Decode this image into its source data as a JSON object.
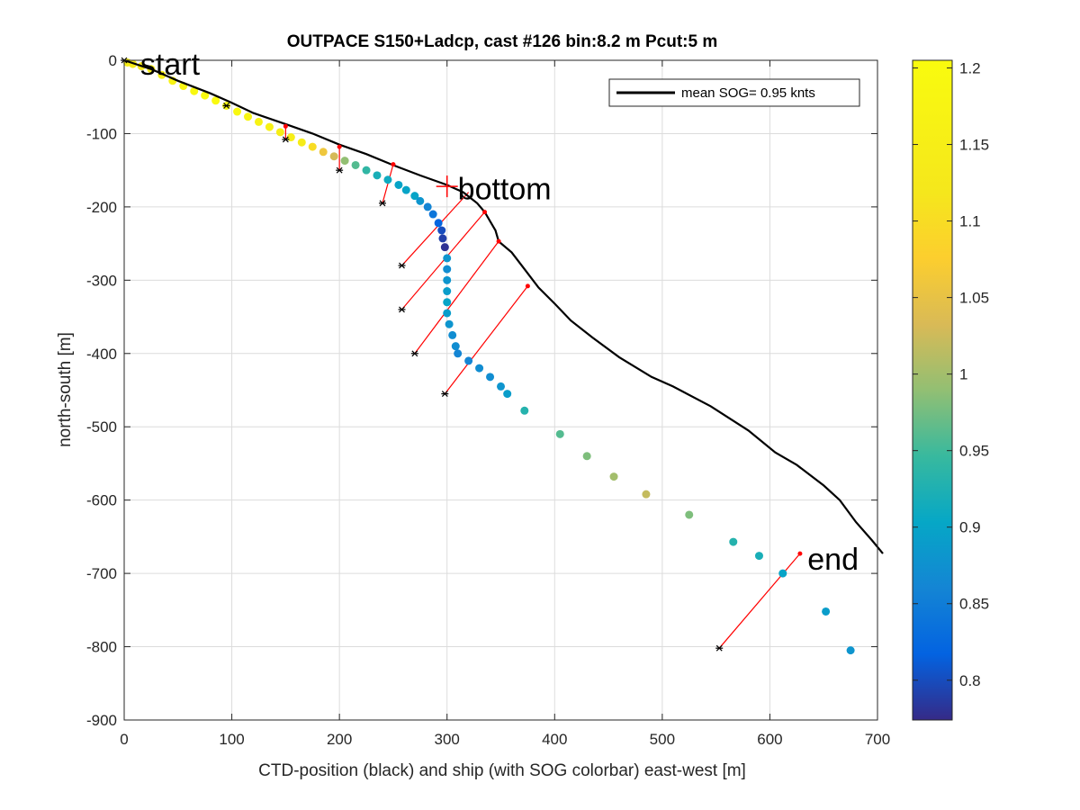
{
  "chart_data": {
    "type": "scatter",
    "title": "OUTPACE S150+Ladcp, cast #126 bin:8.2 m  Pcut:5 m",
    "xlabel": "CTD-position (black) and ship (with SOG colorbar) east-west [m]",
    "ylabel": "north-south [m]",
    "xlim": [
      0,
      700
    ],
    "ylim": [
      -900,
      0
    ],
    "xticks": [
      0,
      100,
      200,
      300,
      400,
      500,
      600,
      700
    ],
    "yticks": [
      0,
      -100,
      -200,
      -300,
      -400,
      -500,
      -600,
      -700,
      -800,
      -900
    ],
    "grid": true,
    "legend": {
      "position": "top-right",
      "entries": [
        "mean SOG=  0.95 knts"
      ]
    },
    "colorbar": {
      "range": [
        0.774,
        1.205
      ],
      "ticks": [
        0.8,
        0.85,
        0.9,
        0.95,
        1,
        1.05,
        1.1,
        1.15,
        1.2
      ],
      "tick_labels": [
        "0.8",
        "0.85",
        "0.9",
        "0.95",
        "1",
        "1.05",
        "1.1",
        "1.15",
        "1.2"
      ],
      "colormap": "parula"
    },
    "ctd_track": [
      [
        0,
        0
      ],
      [
        25,
        -12
      ],
      [
        50,
        -28
      ],
      [
        80,
        -45
      ],
      [
        100,
        -58
      ],
      [
        120,
        -72
      ],
      [
        150,
        -87
      ],
      [
        175,
        -100
      ],
      [
        200,
        -115
      ],
      [
        225,
        -128
      ],
      [
        250,
        -143
      ],
      [
        275,
        -157
      ],
      [
        300,
        -170
      ],
      [
        315,
        -180
      ],
      [
        328,
        -195
      ],
      [
        335,
        -207
      ],
      [
        345,
        -232
      ],
      [
        348,
        -247
      ],
      [
        360,
        -262
      ],
      [
        372,
        -285
      ],
      [
        385,
        -310
      ],
      [
        400,
        -332
      ],
      [
        415,
        -355
      ],
      [
        435,
        -378
      ],
      [
        460,
        -405
      ],
      [
        490,
        -432
      ],
      [
        510,
        -445
      ],
      [
        545,
        -472
      ],
      [
        580,
        -505
      ],
      [
        605,
        -535
      ],
      [
        625,
        -552
      ],
      [
        650,
        -580
      ],
      [
        665,
        -600
      ],
      [
        680,
        -630
      ],
      [
        695,
        -655
      ],
      [
        705,
        -673
      ]
    ],
    "ship_points": [
      [
        3,
        -3,
        1.15
      ],
      [
        8,
        -5,
        1.13
      ],
      [
        16,
        -8,
        1.12
      ],
      [
        25,
        -12,
        1.14
      ],
      [
        35,
        -20,
        1.15
      ],
      [
        45,
        -28,
        1.17
      ],
      [
        55,
        -35,
        1.18
      ],
      [
        65,
        -42,
        1.19
      ],
      [
        75,
        -48,
        1.2
      ],
      [
        85,
        -55,
        1.2
      ],
      [
        95,
        -62,
        1.19
      ],
      [
        105,
        -70,
        1.19
      ],
      [
        115,
        -77,
        1.18
      ],
      [
        125,
        -84,
        1.17
      ],
      [
        135,
        -91,
        1.16
      ],
      [
        145,
        -98,
        1.15
      ],
      [
        155,
        -105,
        1.15
      ],
      [
        165,
        -112,
        1.14
      ],
      [
        175,
        -118,
        1.1
      ],
      [
        185,
        -125,
        1.06
      ],
      [
        195,
        -131,
        1.03
      ],
      [
        205,
        -137,
        0.99
      ],
      [
        215,
        -143,
        0.96
      ],
      [
        225,
        -150,
        0.94
      ],
      [
        235,
        -157,
        0.92
      ],
      [
        245,
        -163,
        0.91
      ],
      [
        255,
        -170,
        0.9
      ],
      [
        262,
        -177,
        0.9
      ],
      [
        270,
        -185,
        0.9
      ],
      [
        275,
        -192,
        0.88
      ],
      [
        282,
        -200,
        0.86
      ],
      [
        287,
        -210,
        0.84
      ],
      [
        292,
        -222,
        0.82
      ],
      [
        295,
        -232,
        0.8
      ],
      [
        296,
        -243,
        0.79
      ],
      [
        298,
        -255,
        0.78
      ],
      [
        300,
        -270,
        0.88
      ],
      [
        300,
        -285,
        0.87
      ],
      [
        300,
        -300,
        0.88
      ],
      [
        300,
        -315,
        0.89
      ],
      [
        300,
        -330,
        0.9
      ],
      [
        300,
        -345,
        0.89
      ],
      [
        302,
        -360,
        0.88
      ],
      [
        305,
        -375,
        0.87
      ],
      [
        308,
        -390,
        0.87
      ],
      [
        310,
        -400,
        0.86
      ],
      [
        320,
        -410,
        0.86
      ],
      [
        330,
        -420,
        0.87
      ],
      [
        340,
        -432,
        0.87
      ],
      [
        350,
        -445,
        0.88
      ],
      [
        356,
        -455,
        0.89
      ],
      [
        372,
        -478,
        0.93
      ],
      [
        405,
        -510,
        0.96
      ],
      [
        430,
        -540,
        0.98
      ],
      [
        455,
        -568,
        1.0
      ],
      [
        485,
        -592,
        1.02
      ],
      [
        525,
        -620,
        0.98
      ],
      [
        566,
        -657,
        0.93
      ],
      [
        590,
        -676,
        0.92
      ],
      [
        612,
        -700,
        0.9
      ],
      [
        652,
        -752,
        0.89
      ],
      [
        675,
        -805,
        0.88
      ]
    ],
    "ship_markers": [
      [
        0,
        0
      ],
      [
        95,
        -62
      ],
      [
        150,
        -108
      ],
      [
        200,
        -150
      ],
      [
        240,
        -195
      ],
      [
        258,
        -280
      ],
      [
        258,
        -340
      ],
      [
        270,
        -400
      ],
      [
        298,
        -455
      ],
      [
        553,
        -802
      ]
    ],
    "ctd_markers": [
      [
        150,
        -90
      ],
      [
        200,
        -118
      ],
      [
        250,
        -142
      ],
      [
        335,
        -207
      ],
      [
        348,
        -247
      ],
      [
        375,
        -308
      ],
      [
        628,
        -673
      ]
    ],
    "connectors": [
      [
        [
          150,
          -90
        ],
        [
          150,
          -108
        ]
      ],
      [
        [
          200,
          -118
        ],
        [
          200,
          -150
        ]
      ],
      [
        [
          250,
          -142
        ],
        [
          240,
          -195
        ]
      ],
      [
        [
          320,
          -180
        ],
        [
          258,
          -280
        ]
      ],
      [
        [
          335,
          -207
        ],
        [
          258,
          -340
        ]
      ],
      [
        [
          348,
          -247
        ],
        [
          270,
          -400
        ]
      ],
      [
        [
          375,
          -308
        ],
        [
          298,
          -455
        ]
      ],
      [
        [
          628,
          -673
        ],
        [
          553,
          -802
        ]
      ]
    ],
    "annotations": [
      {
        "text": "start",
        "x": 15,
        "y": -5
      },
      {
        "text": "bottom",
        "x": 310,
        "y": -175
      },
      {
        "text": "end",
        "x": 635,
        "y": -680
      }
    ],
    "bottom_marker": [
      300,
      -172
    ]
  }
}
